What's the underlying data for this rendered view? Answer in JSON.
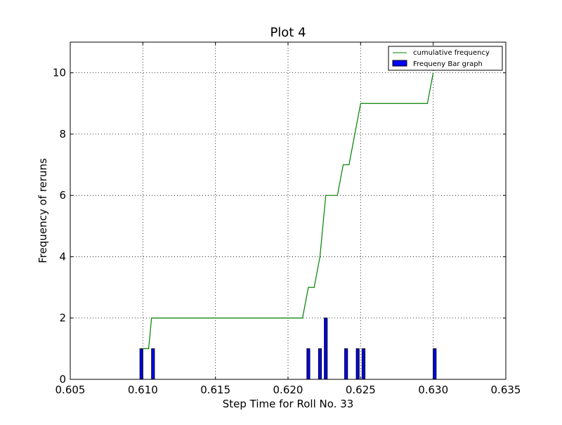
{
  "chart_data": {
    "type": "bar",
    "title": "Plot 4",
    "xlabel": "Step Time for Roll No. 33",
    "ylabel": "Frequency of reruns",
    "xlim": [
      0.605,
      0.635
    ],
    "ylim": [
      0,
      11
    ],
    "xticks": [
      0.605,
      0.61,
      0.615,
      0.62,
      0.625,
      0.63,
      0.635
    ],
    "xtick_labels": [
      "0.605",
      "0.610",
      "0.615",
      "0.620",
      "0.625",
      "0.630",
      "0.635"
    ],
    "yticks": [
      0,
      2,
      4,
      6,
      8,
      10
    ],
    "ytick_labels": [
      "0",
      "2",
      "4",
      "6",
      "8",
      "10"
    ],
    "grid": true,
    "legend_position": "top-right",
    "series": [
      {
        "name": "cumulative frequency",
        "kind": "line",
        "color": "#008000",
        "x": [
          0.61,
          0.6104,
          0.6106,
          0.621,
          0.6214,
          0.6218,
          0.6222,
          0.6226,
          0.6234,
          0.6238,
          0.6242,
          0.625,
          0.6296,
          0.63
        ],
        "y": [
          1,
          1,
          2,
          2,
          3,
          3,
          4,
          6,
          6,
          7,
          7,
          9,
          9,
          10
        ]
      },
      {
        "name": "Frequeny Bar graph",
        "kind": "bar",
        "color": "#0000ff",
        "bar_width": 0.0002,
        "x": [
          0.6099,
          0.6107,
          0.6214,
          0.6222,
          0.6226,
          0.624,
          0.6248,
          0.6252,
          0.6301
        ],
        "values": [
          1,
          1,
          1,
          1,
          2,
          1,
          1,
          1,
          1
        ]
      }
    ]
  }
}
